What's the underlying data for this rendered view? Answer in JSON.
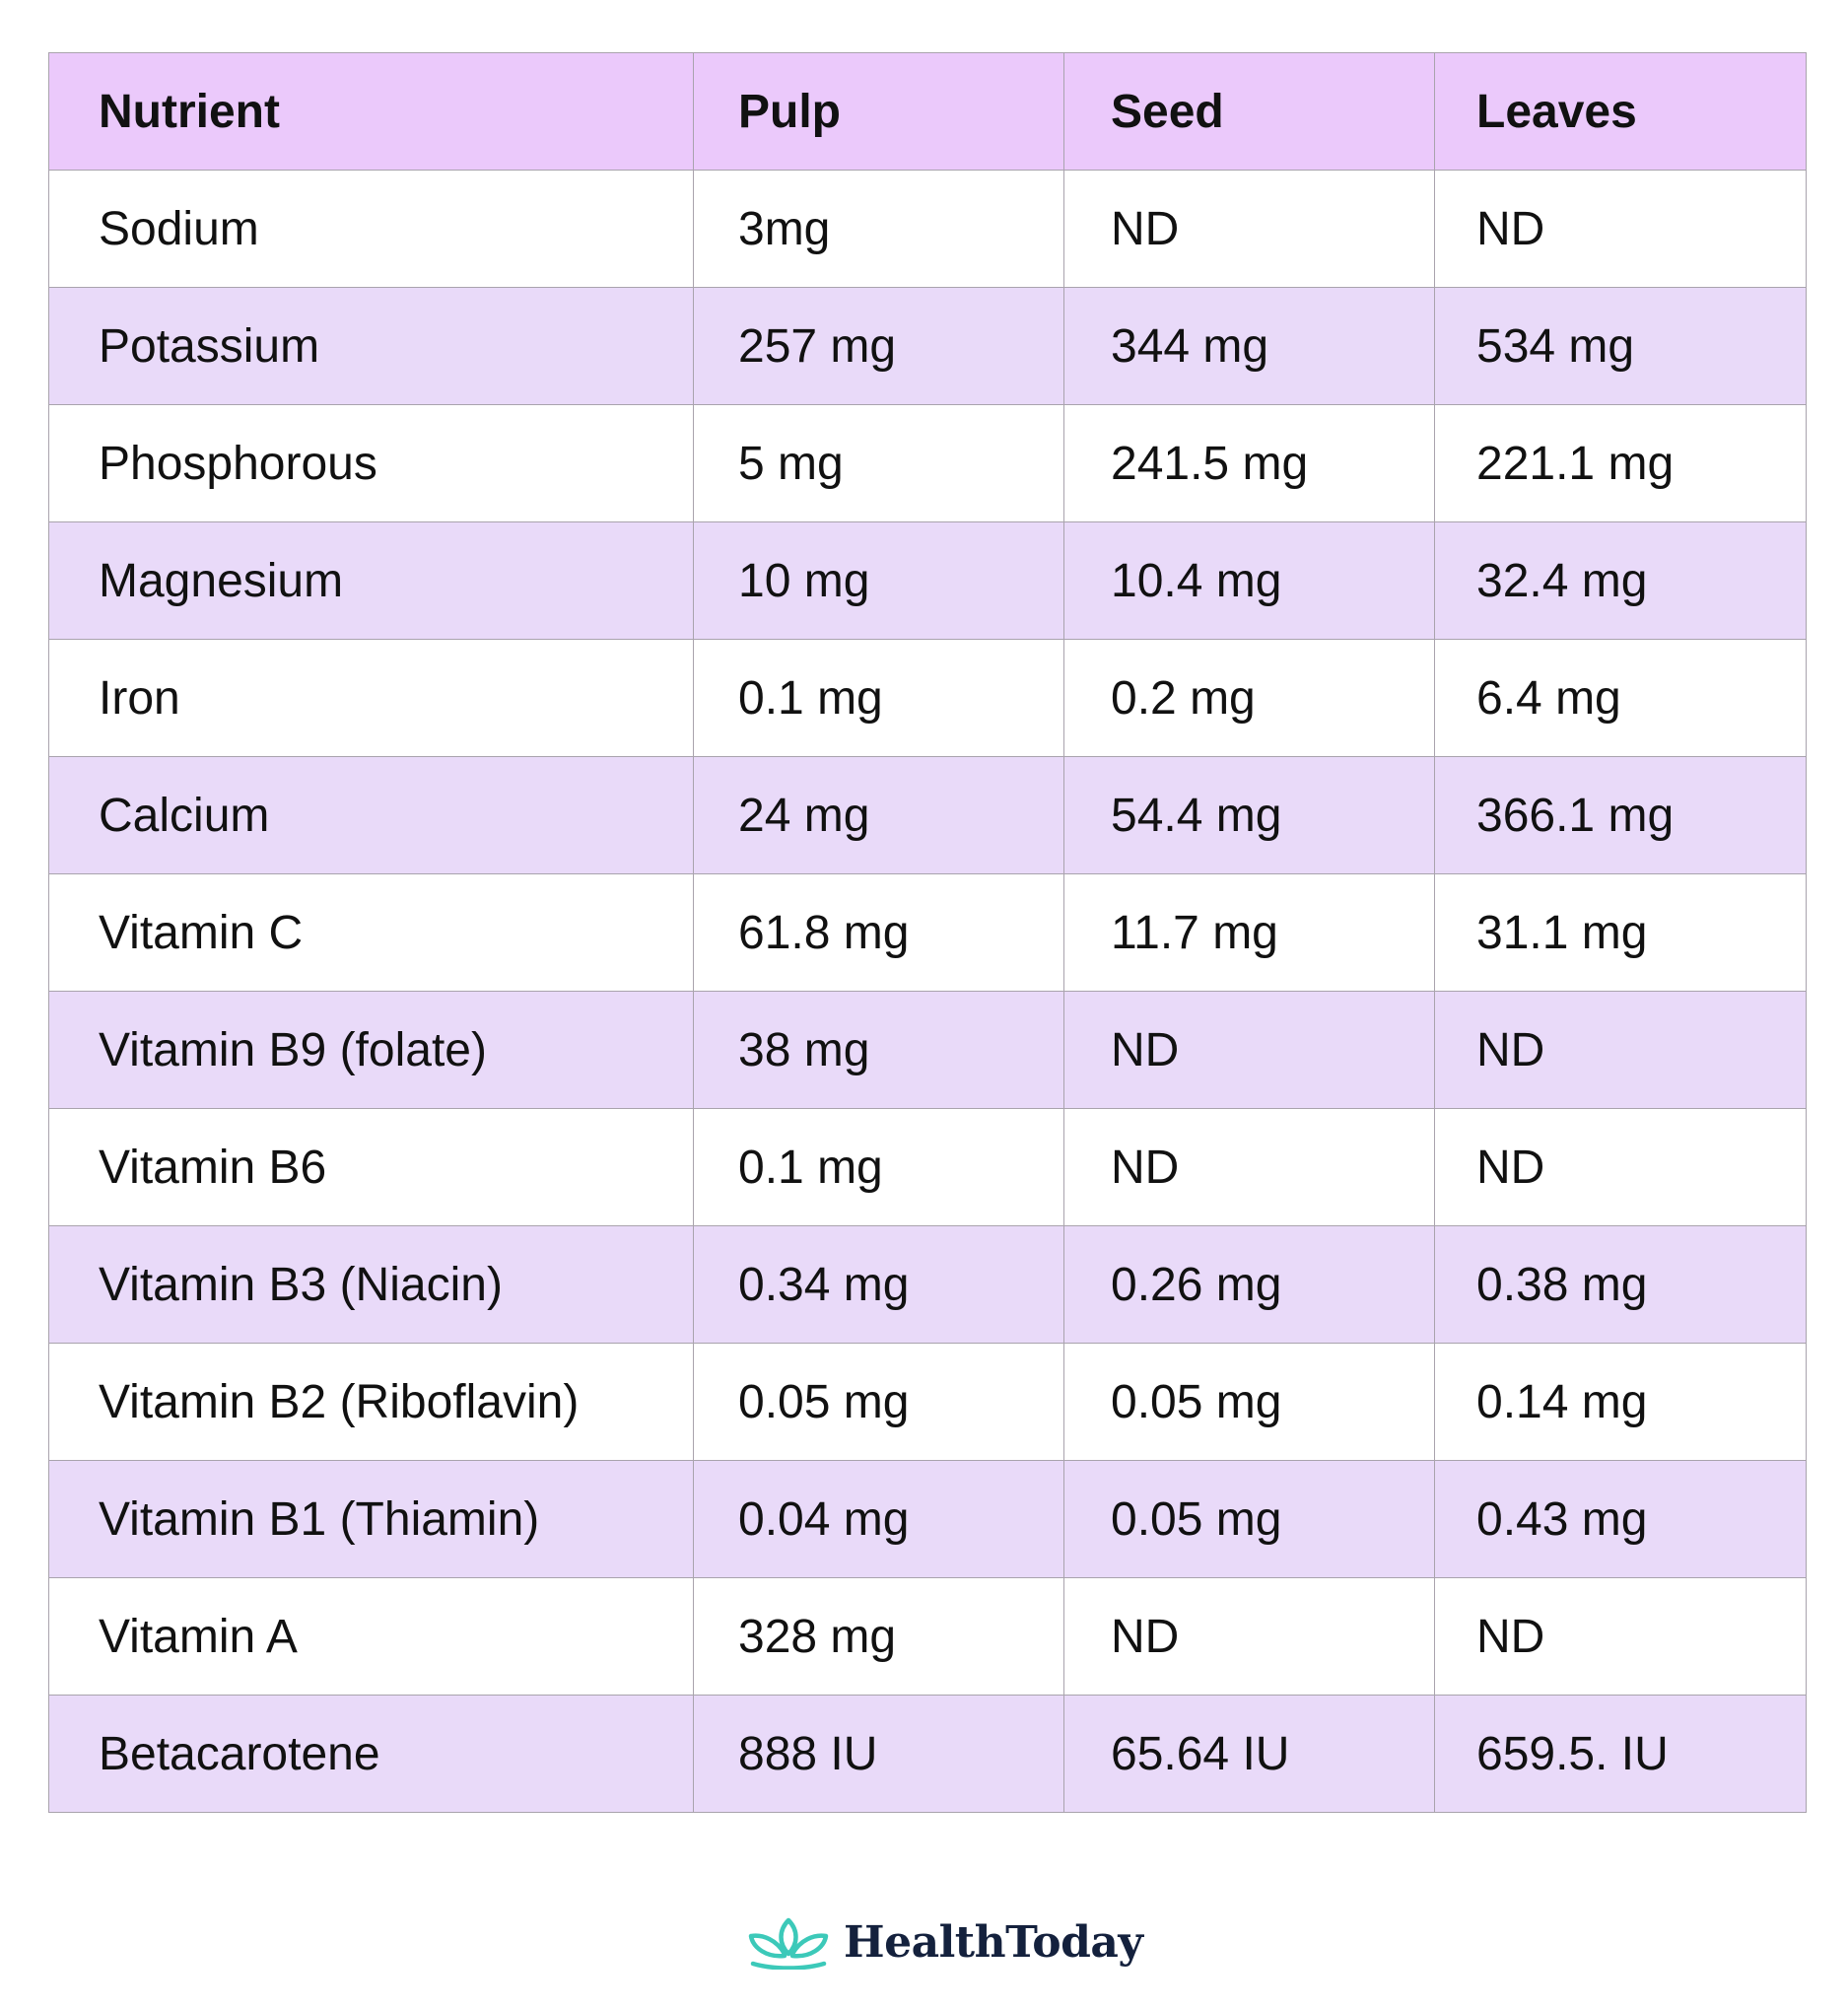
{
  "table": {
    "headers": [
      "Nutrient",
      "Pulp",
      "Seed",
      "Leaves"
    ],
    "rows": [
      [
        "Sodium",
        "3mg",
        "ND",
        "ND"
      ],
      [
        "Potassium",
        "257 mg",
        "344 mg",
        "534 mg"
      ],
      [
        "Phosphorous",
        "5 mg",
        "241.5 mg",
        "221.1 mg"
      ],
      [
        "Magnesium",
        "10 mg",
        "10.4 mg",
        "32.4 mg"
      ],
      [
        "Iron",
        "0.1 mg",
        "0.2 mg",
        "6.4 mg"
      ],
      [
        "Calcium",
        "24 mg",
        "54.4 mg",
        "366.1 mg"
      ],
      [
        "Vitamin C",
        "61.8 mg",
        "11.7 mg",
        "31.1 mg"
      ],
      [
        "Vitamin B9 (folate)",
        "38 mg",
        "ND",
        "ND"
      ],
      [
        "Vitamin B6",
        "0.1 mg",
        "ND",
        "ND"
      ],
      [
        "Vitamin B3 (Niacin)",
        "0.34 mg",
        "0.26 mg",
        "0.38 mg"
      ],
      [
        "Vitamin B2 (Riboflavin)",
        "0.05 mg",
        "0.05 mg",
        "0.14 mg"
      ],
      [
        "Vitamin B1 (Thiamin)",
        "0.04 mg",
        "0.05 mg",
        "0.43 mg"
      ],
      [
        "Vitamin A",
        "328 mg",
        "ND",
        "ND"
      ],
      [
        "Betacarotene",
        "888 IU",
        "65.64 IU",
        "659.5. IU"
      ]
    ]
  },
  "brand": {
    "name": "HealthToday",
    "icon": "lotus-icon",
    "icon_color": "#3cc9b9",
    "text_color": "#14213d"
  },
  "colors": {
    "header_bg": "#ebc9fb",
    "stripe_bg": "#e9daf9",
    "border": "#a9a3ad"
  }
}
